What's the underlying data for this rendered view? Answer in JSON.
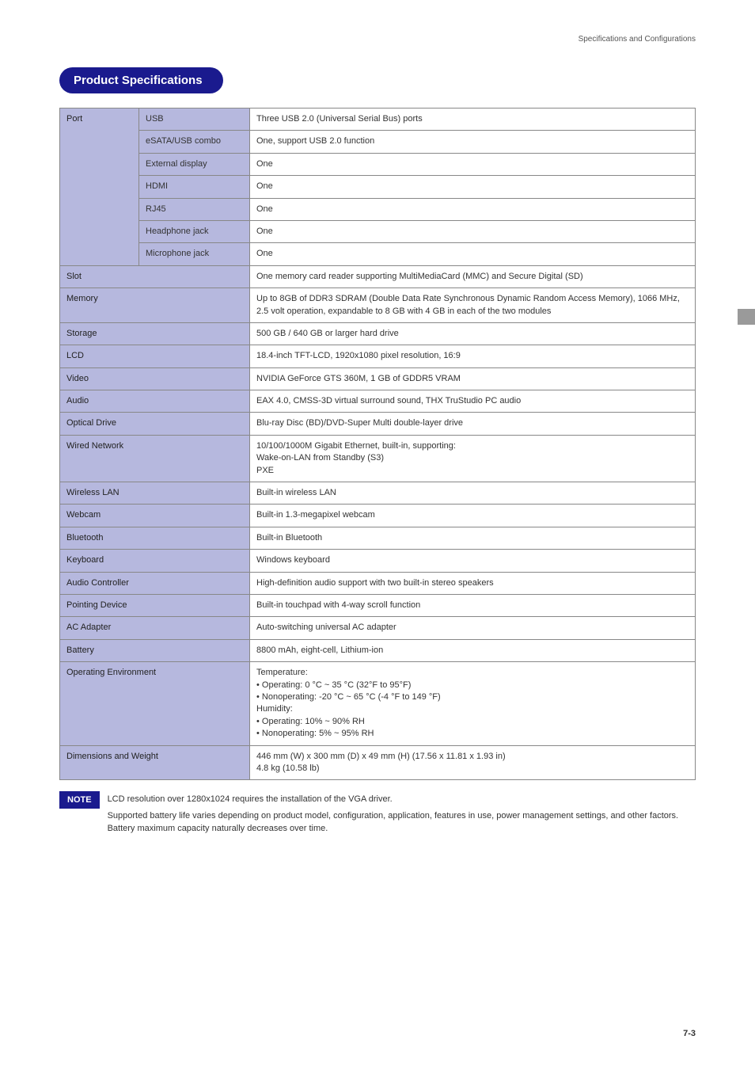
{
  "header": {
    "breadcrumb": "Specifications and Configurations"
  },
  "title": "Product Specifications",
  "side": {
    "section_number": "7",
    "section_label": "Specifications and Configurations"
  },
  "table": {
    "label_col_width": "240px",
    "rows": [
      {
        "group": "Port",
        "group_rowspan": 7,
        "sub": "USB",
        "value": "Three USB 2.0 (Universal Serial Bus) ports"
      },
      {
        "sub": "eSATA/USB combo",
        "value": "One, support USB 2.0 function"
      },
      {
        "sub": "External display",
        "value": "One"
      },
      {
        "sub": "HDMI",
        "value": "One"
      },
      {
        "sub": "RJ45",
        "value": "One"
      },
      {
        "sub": "Headphone jack",
        "value": "One"
      },
      {
        "sub": "Microphone jack",
        "value": "One"
      },
      {
        "label": "Slot",
        "value": "One memory card reader supporting MultiMediaCard (MMC) and Secure Digital (SD)"
      },
      {
        "label": "Memory",
        "value": "Up to 8GB of DDR3 SDRAM (Double Data Rate Synchronous Dynamic Random Access Memory), 1066 MHz, 2.5 volt operation, expandable to 8 GB with 4 GB in each of the two modules"
      },
      {
        "label": "Storage",
        "value": "500 GB / 640 GB or larger hard drive"
      },
      {
        "label": "LCD",
        "value": "18.4-inch TFT-LCD, 1920x1080 pixel resolution, 16:9"
      },
      {
        "label": "Video",
        "value": "NVIDIA GeForce GTS 360M, 1 GB of GDDR5 VRAM"
      },
      {
        "label": "Audio",
        "value": "EAX 4.0, CMSS-3D virtual surround sound, THX TruStudio PC audio"
      },
      {
        "label": "Optical Drive",
        "value": "Blu-ray Disc (BD)/DVD-Super Multi double-layer drive"
      },
      {
        "label": "Wired Network",
        "value": "10/100/1000M Gigabit Ethernet, built-in, supporting:\nWake-on-LAN from Standby (S3)\nPXE"
      },
      {
        "label": "Wireless LAN",
        "value": "Built-in wireless LAN"
      },
      {
        "label": "Webcam",
        "value": "Built-in 1.3-megapixel webcam"
      },
      {
        "label": "Bluetooth",
        "value": "Built-in Bluetooth"
      },
      {
        "thick": true,
        "label": "Keyboard",
        "value": "Windows keyboard"
      },
      {
        "label": "Audio Controller",
        "value": "High-definition audio support with two built-in stereo speakers"
      },
      {
        "label": "Pointing Device",
        "value": "Built-in touchpad with 4-way scroll function"
      },
      {
        "label": "AC Adapter",
        "value": "Auto-switching universal AC adapter"
      },
      {
        "label": "Battery",
        "value": "8800 mAh, eight-cell, Lithium-ion"
      },
      {
        "label": "Operating Environment",
        "value": "Temperature:\n• Operating: 0 °C ~ 35 °C (32°F to 95°F)\n• Nonoperating: -20 °C ~ 65 °C (-4 °F to 149 °F)\nHumidity:\n• Operating: 10% ~ 90% RH\n• Nonoperating: 5% ~ 95% RH"
      },
      {
        "label": "Dimensions and Weight",
        "value": "446 mm (W) x 300 mm (D) x 49 mm (H) (17.56 x 11.81 x 1.93 in)\n4.8 kg (10.58 lb)"
      }
    ]
  },
  "note": {
    "badge": "NOTE",
    "lines": [
      "LCD resolution over 1280x1024 requires the installation of the VGA driver.",
      "Supported battery life varies depending on product model, configuration, application, features in use, power management settings, and other factors. Battery maximum capacity naturally decreases over time."
    ]
  },
  "page_number": "7-3",
  "styling": {
    "pill_bg": "#1a1a8e",
    "pill_fg": "#ffffff",
    "label_bg": "#b6b8de",
    "border_color": "#888888",
    "side_tab_bg": "#9a9a9a"
  }
}
